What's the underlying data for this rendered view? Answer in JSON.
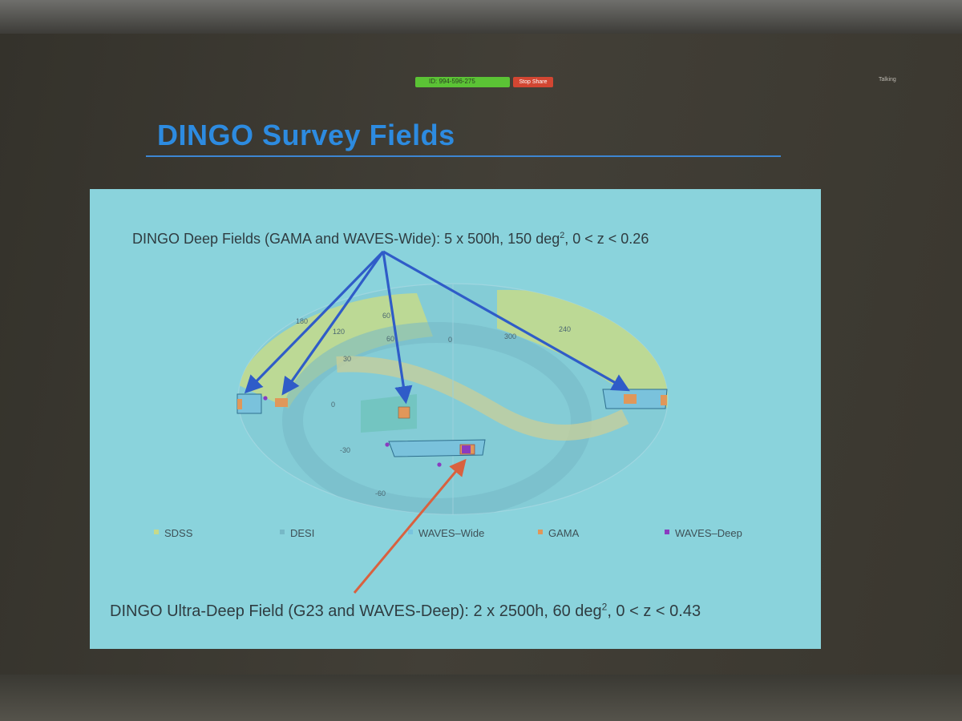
{
  "meeting": {
    "id_label": "ID: 994-596-275",
    "stop_share_label": "Stop Share",
    "status_label": "Talking"
  },
  "slide": {
    "title": "DINGO Survey Fields",
    "deep_caption": {
      "prefix": "DINGO Deep Fields (GAMA and WAVES-Wide): 5 x 500h, 150 deg",
      "exponent": "2",
      "suffix": ", 0 < z < 0.26"
    },
    "ultra_caption": {
      "prefix": "DINGO Ultra-Deep Field (G23 and WAVES-Deep): 2 x 2500h, 60 deg",
      "exponent": "2",
      "suffix": ", 0 < z < 0.43"
    }
  },
  "sky_map": {
    "ra_labels": [
      "180",
      "120",
      "60",
      "0",
      "300",
      "240"
    ],
    "dec_labels": [
      "60",
      "30",
      "0",
      "-30",
      "-60"
    ],
    "legend": [
      "SDSS",
      "DESI",
      "WAVES–Wide",
      "GAMA",
      "WAVES–Deep"
    ]
  },
  "colors": {
    "title": "#2d8be0",
    "panel": "#8ad3dc",
    "sdss": "#c6da8a",
    "desi": "#77b8c6",
    "waves_wide": "#78c3de",
    "gama": "#e0975a",
    "waves_deep": "#8a3bc0",
    "deep_arrows": "#2f5cc8",
    "ultra_arrow": "#d9613f"
  }
}
